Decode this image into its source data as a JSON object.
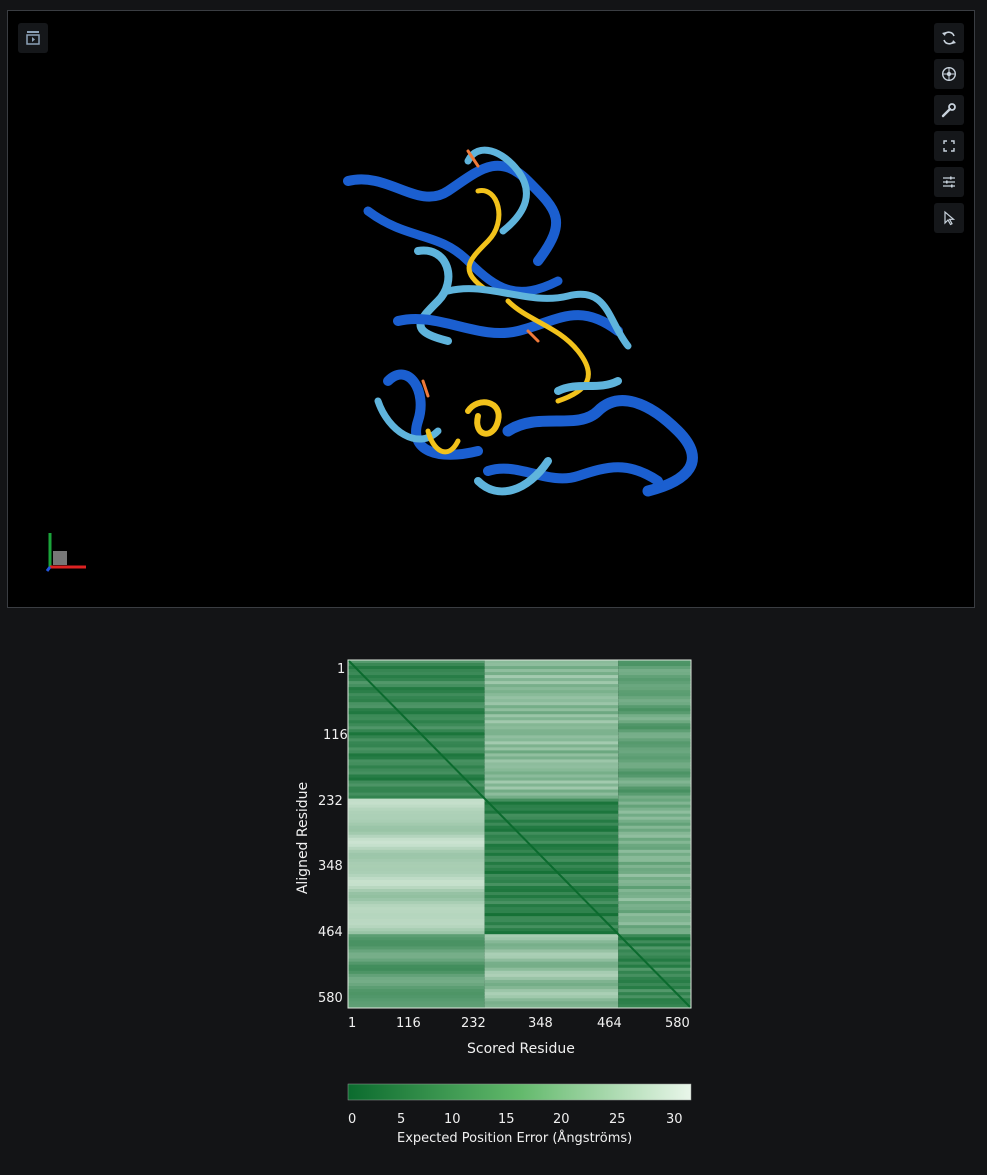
{
  "viewer": {
    "tools": [
      "refresh-icon",
      "camera-icon",
      "wrench-icon",
      "fullscreen-icon",
      "sliders-icon",
      "cursor-icon"
    ],
    "top_left_tool": "screenshot-icon"
  },
  "pae": {
    "y_ticks": [
      "1",
      "116",
      "232",
      "348",
      "464",
      "580"
    ],
    "x_ticks": [
      "1",
      "116",
      "232",
      "348",
      "464",
      "580"
    ],
    "x_title": "Scored Residue",
    "y_title": "Aligned Residue",
    "colorbar_ticks": [
      "0",
      "5",
      "10",
      "15",
      "20",
      "25",
      "30"
    ],
    "colorbar_title": "Expected Position Error (Ångströms)",
    "color_low": "#0b6b2e",
    "color_high": "#e9f6ea"
  },
  "chart_data": {
    "type": "heatmap",
    "xlabel": "Scored Residue",
    "ylabel": "Aligned Residue",
    "x_ticks": [
      1,
      116,
      232,
      348,
      464,
      580
    ],
    "y_ticks": [
      1,
      116,
      232,
      348,
      464,
      580
    ],
    "xlim": [
      1,
      580
    ],
    "ylim": [
      1,
      580
    ],
    "color_range": [
      0,
      30
    ],
    "colorbar_label": "Expected Position Error (Ångströms)",
    "domains": [
      [
        1,
        232
      ],
      [
        232,
        458
      ],
      [
        458,
        580
      ]
    ],
    "approx_block_values": [
      [
        6,
        17,
        12
      ],
      [
        22,
        5,
        15
      ],
      [
        11,
        18,
        6
      ]
    ]
  }
}
